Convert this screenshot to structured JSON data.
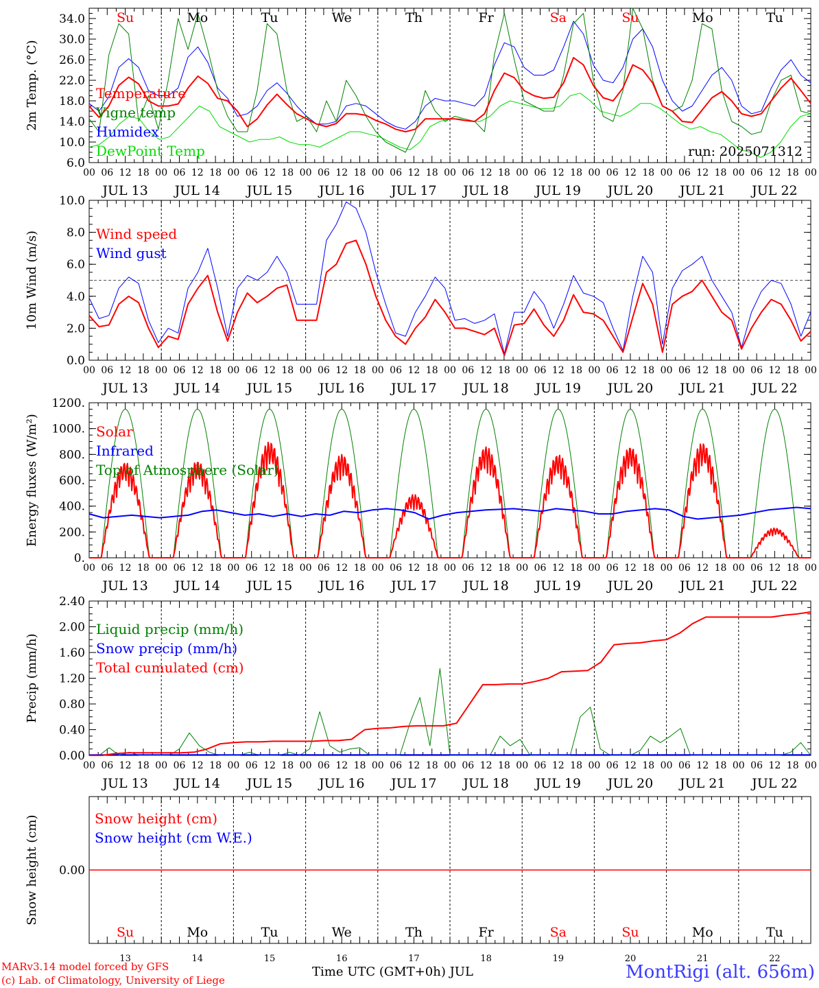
{
  "footer": {
    "model_line": "MARv3.14 model forced by GFS",
    "credit_line": "(c) Lab. of Climatology, University of Liege",
    "time_label": "Time UTC (GMT+0h) JUL",
    "station": "MontRigi (alt. 656m)"
  },
  "colors": {
    "red": "#ff0000",
    "green": "#008000",
    "blue": "#0000ff",
    "lime": "#00dd00",
    "weekend": "#ff0000"
  },
  "chart_data": [
    {
      "type": "line",
      "ylabel": "2m Temp. (°C)",
      "ylim": [
        6,
        36
      ],
      "yticks": [
        "6.0",
        "10.0",
        "14.0",
        "18.0",
        "22.0",
        "26.0",
        "30.0",
        "34.0"
      ],
      "yticks_v": [
        6,
        10,
        14,
        18,
        22,
        26,
        30,
        34
      ],
      "annotation": "run: 2025071312",
      "day_names": [
        "Su",
        "Mo",
        "Tu",
        "We",
        "Th",
        "Fr",
        "Sa",
        "Su",
        "Mo",
        "Tu"
      ],
      "weekend": [
        true,
        false,
        false,
        false,
        false,
        false,
        true,
        true,
        false,
        false
      ],
      "series": [
        {
          "name": "Temperature",
          "color": "#ff0000",
          "width": 2,
          "values": [
            17,
            14.8,
            17,
            21,
            22.6,
            21.3,
            18,
            17,
            17,
            17.4,
            20.5,
            22.8,
            21.4,
            18.5,
            18,
            16,
            13,
            14.5,
            17.2,
            19.3,
            17.3,
            15.5,
            14.5,
            13.5,
            13,
            13.6,
            15.5,
            15.5,
            15.2,
            14.2,
            13.5,
            12.5,
            12,
            12.5,
            14.5,
            14.5,
            14.5,
            14.5,
            14.2,
            14,
            15.5,
            20,
            23.4,
            22.5,
            20,
            19,
            18.5,
            18.7,
            21.5,
            26.4,
            25,
            21,
            18.6,
            18,
            20.5,
            25,
            24,
            21.5,
            17,
            16,
            14,
            13.8,
            16.2,
            18.6,
            19.8,
            18,
            15.5,
            15,
            15.5,
            18,
            20.5,
            22.4,
            20,
            17.5
          ]
        },
        {
          "name": "Vigne temp",
          "color": "#008000",
          "width": 1,
          "values": [
            14.5,
            12,
            27,
            33,
            31,
            14,
            19,
            12.5,
            22,
            34,
            28,
            35,
            28,
            20,
            15,
            12,
            12,
            20,
            33,
            31,
            20,
            14,
            15,
            12,
            18,
            14,
            22,
            19,
            15,
            12,
            10,
            9,
            8,
            12,
            20,
            16,
            14,
            15,
            14.5,
            14,
            12,
            27,
            35,
            26,
            18,
            17,
            16,
            16,
            23,
            33,
            35,
            22,
            15,
            14,
            20,
            36,
            32,
            22,
            17,
            16,
            17,
            22,
            33,
            32,
            20,
            14,
            13,
            11.5,
            12,
            18,
            22,
            23,
            16,
            15.5
          ]
        },
        {
          "name": "Humidex",
          "color": "#0000ff",
          "width": 1,
          "values": [
            17.5,
            16,
            18.8,
            24.5,
            26.2,
            24.5,
            20,
            19,
            19,
            20.5,
            26.5,
            28.5,
            25.5,
            20.5,
            18.5,
            15,
            15.5,
            17,
            20,
            21.5,
            19.5,
            17,
            15,
            13.5,
            13.5,
            14,
            17,
            17.5,
            17,
            15.5,
            14,
            13,
            12.5,
            14,
            17,
            18.5,
            18,
            18,
            17.5,
            17,
            19,
            25,
            29.3,
            28.5,
            24.5,
            23,
            23,
            24,
            28.5,
            33.5,
            31,
            25,
            22,
            21.5,
            24.5,
            30,
            32,
            28.5,
            22,
            18,
            16,
            17,
            20,
            23,
            24.5,
            22,
            17,
            15.5,
            16,
            20.5,
            24,
            26,
            23,
            21.5
          ]
        },
        {
          "name": "DewPoint Temp",
          "color": "#00dd00",
          "width": 1,
          "values": [
            9,
            9.5,
            11,
            13.5,
            15,
            14.5,
            12,
            10.5,
            11,
            13,
            15,
            17,
            16,
            13,
            12,
            11,
            10,
            10.5,
            10.5,
            11,
            10,
            9.5,
            9.5,
            9,
            10,
            11,
            12,
            12,
            11.5,
            11,
            10,
            9,
            8.5,
            10,
            13,
            14,
            14.5,
            14.5,
            14,
            14,
            15,
            17,
            18,
            17.5,
            17,
            16.5,
            16.5,
            17,
            19,
            19.5,
            18,
            16,
            15.5,
            15,
            16,
            17.5,
            17.5,
            16.5,
            15,
            13.5,
            12.5,
            13,
            12,
            11.5,
            10,
            8.5,
            8,
            7,
            8,
            10,
            13,
            15,
            15.5
          ]
        }
      ]
    },
    {
      "type": "line",
      "ylabel": "10m Wind (m/s)",
      "ylim": [
        0,
        10
      ],
      "yticks": [
        "0.0",
        "2.0",
        "4.0",
        "6.0",
        "8.0",
        "10.0"
      ],
      "yticks_v": [
        0,
        2,
        4,
        6,
        8,
        10
      ],
      "ref_line": 5,
      "series": [
        {
          "name": "Wind speed",
          "color": "#ff0000",
          "width": 2,
          "values": [
            2.8,
            2.1,
            2.2,
            3.5,
            4,
            3.6,
            2,
            0.8,
            1.5,
            1.3,
            3.5,
            4.5,
            5.3,
            3,
            1.2,
            3,
            4.2,
            3.6,
            4,
            4.5,
            4.7,
            2.5,
            2.5,
            2.5,
            5.5,
            6,
            7.3,
            7.5,
            6,
            4,
            2.5,
            1.5,
            1,
            2,
            2.7,
            3.8,
            3,
            2,
            2,
            1.8,
            1.6,
            2,
            0.3,
            2.2,
            2.3,
            3.2,
            2.2,
            1.5,
            2.5,
            4.1,
            3,
            2.9,
            2.5,
            1.5,
            0.5,
            2.7,
            4.8,
            3.5,
            0.5,
            3.5,
            4,
            4.3,
            5,
            4,
            3,
            2.5,
            0.7,
            2,
            3,
            3.8,
            3.5,
            2.5,
            1.2,
            1.8
          ]
        },
        {
          "name": "Wind gust",
          "color": "#0000ff",
          "width": 1,
          "values": [
            3.9,
            2.6,
            2.8,
            4.5,
            5.2,
            4.8,
            2.5,
            1.1,
            2,
            1.7,
            4.5,
            5.5,
            7,
            4.5,
            1.5,
            4.5,
            5.3,
            5,
            5.5,
            6.5,
            5.5,
            3.5,
            3.5,
            3.5,
            7.5,
            8.5,
            9.9,
            9.5,
            8,
            5.5,
            3.5,
            1.7,
            1.5,
            3,
            4,
            5.2,
            4.5,
            2.5,
            2.6,
            2.3,
            2.5,
            2.9,
            0.4,
            3,
            3,
            4.3,
            3.5,
            2,
            3.5,
            5.3,
            4.2,
            4,
            3.6,
            2,
            0.6,
            4,
            6.5,
            5.5,
            1,
            4.5,
            5.6,
            6,
            6.5,
            5,
            4,
            3,
            0.8,
            3,
            4.3,
            5,
            4.8,
            3.5,
            1.5,
            3
          ]
        }
      ]
    },
    {
      "type": "line",
      "ylabel": "Energy fluxes (W/m²)",
      "ylim": [
        0,
        1200
      ],
      "yticks": [
        "0.",
        "200.",
        "400.",
        "600.",
        "800.",
        "1000.",
        "1200."
      ],
      "yticks_v": [
        0,
        200,
        400,
        600,
        800,
        1000,
        1200
      ],
      "solar_peaks": [
        740,
        750,
        900,
        800,
        490,
        860,
        800,
        860,
        890,
        230
      ],
      "series": [
        {
          "name": "Solar",
          "color": "#ff0000",
          "width": 2,
          "values": []
        },
        {
          "name": "Infrared",
          "color": "#0000ff",
          "width": 2,
          "values": [
            340,
            310,
            320,
            330,
            320,
            310,
            320,
            330,
            360,
            370,
            350,
            330,
            340,
            320,
            340,
            320,
            340,
            330,
            360,
            350,
            370,
            380,
            370,
            350,
            300,
            330,
            350,
            360,
            370,
            375,
            380,
            370,
            360,
            380,
            370,
            360,
            340,
            340,
            360,
            370,
            380,
            370,
            320,
            300,
            310,
            320,
            330,
            350,
            370,
            380,
            390,
            380
          ]
        },
        {
          "name": "Top of Atmosphere (Solar)",
          "color": "#008000",
          "width": 1,
          "values": []
        }
      ]
    },
    {
      "type": "line",
      "ylabel": "Precip (mm/h)",
      "ylim": [
        0,
        2.4
      ],
      "yticks": [
        "0.00",
        "0.40",
        "0.80",
        "1.20",
        "1.60",
        "2.00",
        "2.40"
      ],
      "yticks_v": [
        0,
        0.4,
        0.8,
        1.2,
        1.6,
        2.0,
        2.4
      ],
      "series": [
        {
          "name": "Liquid precip (mm/h)",
          "color": "#008000",
          "width": 1,
          "values": [
            0,
            0,
            0.12,
            0,
            0.05,
            0,
            0,
            0,
            0,
            0.1,
            0.35,
            0.15,
            0.05,
            0,
            0,
            0,
            0.05,
            0,
            0,
            0,
            0.05,
            0,
            0.1,
            0.68,
            0.15,
            0.05,
            0.1,
            0.12,
            0,
            0,
            0,
            0,
            0.5,
            0.9,
            0.15,
            1.35,
            0,
            0,
            0,
            0,
            0,
            0.3,
            0.15,
            0.25,
            0,
            0,
            0,
            0,
            0,
            0.6,
            0.75,
            0.1,
            0,
            0,
            0,
            0.08,
            0.3,
            0.2,
            0.3,
            0.42,
            0,
            0,
            0,
            0,
            0,
            0,
            0,
            0,
            0,
            0,
            0.05,
            0.2,
            0
          ]
        },
        {
          "name": "Snow precip (mm/h)",
          "color": "#0000ff",
          "width": 1,
          "values": []
        },
        {
          "name": "Total cumulated (cm)",
          "color": "#ff0000",
          "width": 2,
          "values": [
            0,
            0,
            0.03,
            0.04,
            0.04,
            0.04,
            0.04,
            0.04,
            0.05,
            0.1,
            0.18,
            0.2,
            0.21,
            0.21,
            0.22,
            0.22,
            0.22,
            0.22,
            0.23,
            0.23,
            0.25,
            0.4,
            0.42,
            0.43,
            0.45,
            0.46,
            0.46,
            0.46,
            0.5,
            0.8,
            1.1,
            1.1,
            1.11,
            1.11,
            1.15,
            1.2,
            1.3,
            1.31,
            1.32,
            1.45,
            1.72,
            1.74,
            1.75,
            1.78,
            1.8,
            1.9,
            2.05,
            2.15,
            2.15,
            2.15,
            2.15,
            2.15,
            2.15,
            2.18,
            2.2,
            2.23
          ]
        }
      ]
    },
    {
      "type": "line",
      "ylabel": "Snow height (cm)",
      "ylim": [
        -1,
        1
      ],
      "yticks": [
        "0.00"
      ],
      "yticks_v": [
        0
      ],
      "series": [
        {
          "name": "Snow height (cm)",
          "color": "#ff0000",
          "width": 2,
          "values": [
            0,
            0
          ]
        },
        {
          "name": "Snow height (cm W.E.)",
          "color": "#0000ff",
          "width": 1,
          "values": []
        }
      ]
    }
  ],
  "x_axis": {
    "hour_labels": [
      "00",
      "06",
      "12",
      "18"
    ],
    "end_label": "00",
    "dates": [
      "JUL 13",
      "JUL 14",
      "JUL 15",
      "JUL 16",
      "JUL 17",
      "JUL 18",
      "JUL 19",
      "JUL 20",
      "JUL 21",
      "JUL 22"
    ],
    "day_numbers": [
      "13",
      "14",
      "15",
      "16",
      "17",
      "18",
      "19",
      "20",
      "21",
      "22"
    ]
  }
}
